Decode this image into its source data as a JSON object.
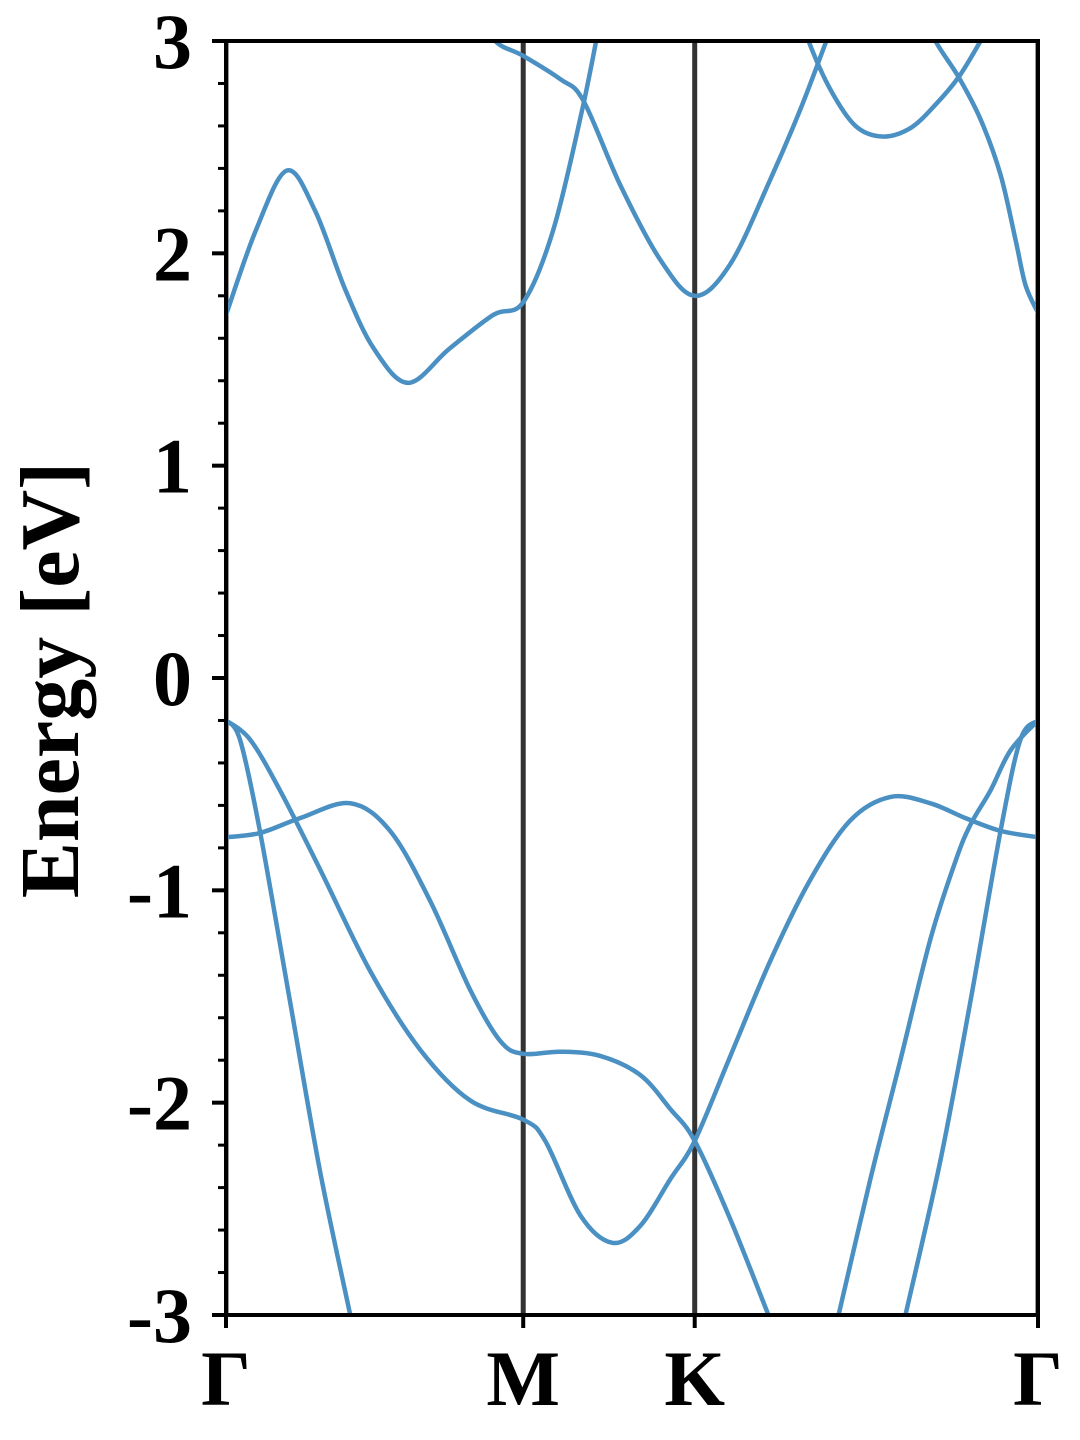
{
  "chart_data": {
    "type": "line",
    "ylabel": "Energy [eV]",
    "xlim": [
      0,
      2.732
    ],
    "ylim": [
      -3,
      3
    ],
    "yticks": [
      -3,
      -2,
      -1,
      0,
      1,
      2,
      3
    ],
    "yminorticks": [
      -2.8,
      -2.6,
      -2.4,
      -2.2,
      -1.8,
      -1.6,
      -1.4,
      -1.2,
      -0.8,
      -0.6,
      -0.4,
      -0.2,
      0.2,
      0.4,
      0.6,
      0.8,
      1.2,
      1.4,
      1.6,
      1.8,
      2.2,
      2.4,
      2.6,
      2.8
    ],
    "xticks": [
      {
        "value": 0,
        "label": "Γ"
      },
      {
        "value": 1,
        "label": "M"
      },
      {
        "value": 1.577,
        "label": "K"
      },
      {
        "value": 2.732,
        "label": "Γ"
      }
    ],
    "vlines": true,
    "series": [
      {
        "color": "#4a90c3",
        "x": [
          0,
          0.101,
          0.205,
          0.3,
          0.401,
          0.498,
          0.613,
          0.751,
          0.899,
          1,
          1.101,
          1.199,
          1.259
        ],
        "values": [
          1.71,
          2.11,
          2.39,
          2.2,
          1.83,
          1.55,
          1.39,
          1.55,
          1.71,
          1.77,
          2.11,
          2.68,
          3.1
        ]
      },
      {
        "color": "#4a90c3",
        "x": [
          0.855,
          0.906,
          1,
          1.125,
          1.202,
          1.327,
          1.461,
          1.577,
          1.697,
          1.832,
          1.933,
          2.02,
          2.067
        ],
        "values": [
          3.15,
          3.0,
          2.93,
          2.82,
          2.72,
          2.32,
          1.97,
          1.8,
          1.95,
          2.35,
          2.68,
          3.0,
          3.17
        ]
      },
      {
        "color": "#4a90c3",
        "x": [
          1.916,
          1.96,
          2.034,
          2.118,
          2.209,
          2.303,
          2.387,
          2.465,
          2.539,
          2.589
        ],
        "values": [
          3.2,
          3.0,
          2.77,
          2.6,
          2.55,
          2.59,
          2.7,
          2.83,
          3.0,
          3.12
        ]
      },
      {
        "color": "#4a90c3",
        "x": [
          2.337,
          2.387,
          2.465,
          2.539,
          2.606,
          2.657,
          2.69,
          2.732
        ],
        "values": [
          3.17,
          3.0,
          2.83,
          2.63,
          2.37,
          2.06,
          1.85,
          1.72
        ]
      },
      {
        "color": "#4a90c3",
        "x": [
          0,
          0.081,
          0.182,
          0.316,
          0.485,
          0.653,
          0.822,
          1,
          1.074,
          1.192,
          1.3,
          1.394,
          1.495,
          1.577,
          1.697,
          1.832,
          1.966,
          2.101,
          2.236,
          2.37,
          2.488,
          2.606,
          2.732
        ],
        "values": [
          -0.2,
          -0.29,
          -0.53,
          -0.9,
          -1.38,
          -1.75,
          -1.99,
          -2.08,
          -2.18,
          -2.53,
          -2.66,
          -2.58,
          -2.36,
          -2.18,
          -1.78,
          -1.33,
          -0.95,
          -0.67,
          -0.56,
          -0.59,
          -0.66,
          -0.72,
          -0.75
        ]
      },
      {
        "color": "#4a90c3",
        "x": [
          0,
          0.114,
          0.249,
          0.418,
          0.552,
          0.687,
          0.822,
          0.923,
          1,
          1.125,
          1.259,
          1.394,
          1.495,
          1.577,
          1.697,
          1.825,
          1.865
        ],
        "values": [
          -0.75,
          -0.73,
          -0.66,
          -0.59,
          -0.72,
          -1.05,
          -1.47,
          -1.71,
          -1.77,
          -1.76,
          -1.78,
          -1.87,
          -2.03,
          -2.18,
          -2.55,
          -3.0,
          -3.14
        ]
      },
      {
        "color": "#4a90c3",
        "x": [
          0,
          0.047,
          0.114,
          0.215,
          0.316,
          0.418,
          0.438
        ],
        "values": [
          -0.2,
          -0.29,
          -0.72,
          -1.52,
          -2.32,
          -3.0,
          -3.14
        ]
      },
      {
        "color": "#4a90c3",
        "x": [
          2.034,
          2.061,
          2.168,
          2.269,
          2.37,
          2.455,
          2.505,
          2.572,
          2.64,
          2.732
        ],
        "values": [
          -3.14,
          -3.0,
          -2.36,
          -1.8,
          -1.23,
          -0.86,
          -0.69,
          -0.53,
          -0.34,
          -0.2
        ]
      },
      {
        "color": "#4a90c3",
        "x": [
          2.263,
          2.286,
          2.404,
          2.505,
          2.606,
          2.673,
          2.732
        ],
        "values": [
          -3.14,
          -3.0,
          -2.27,
          -1.52,
          -0.72,
          -0.29,
          -0.2
        ]
      }
    ]
  }
}
